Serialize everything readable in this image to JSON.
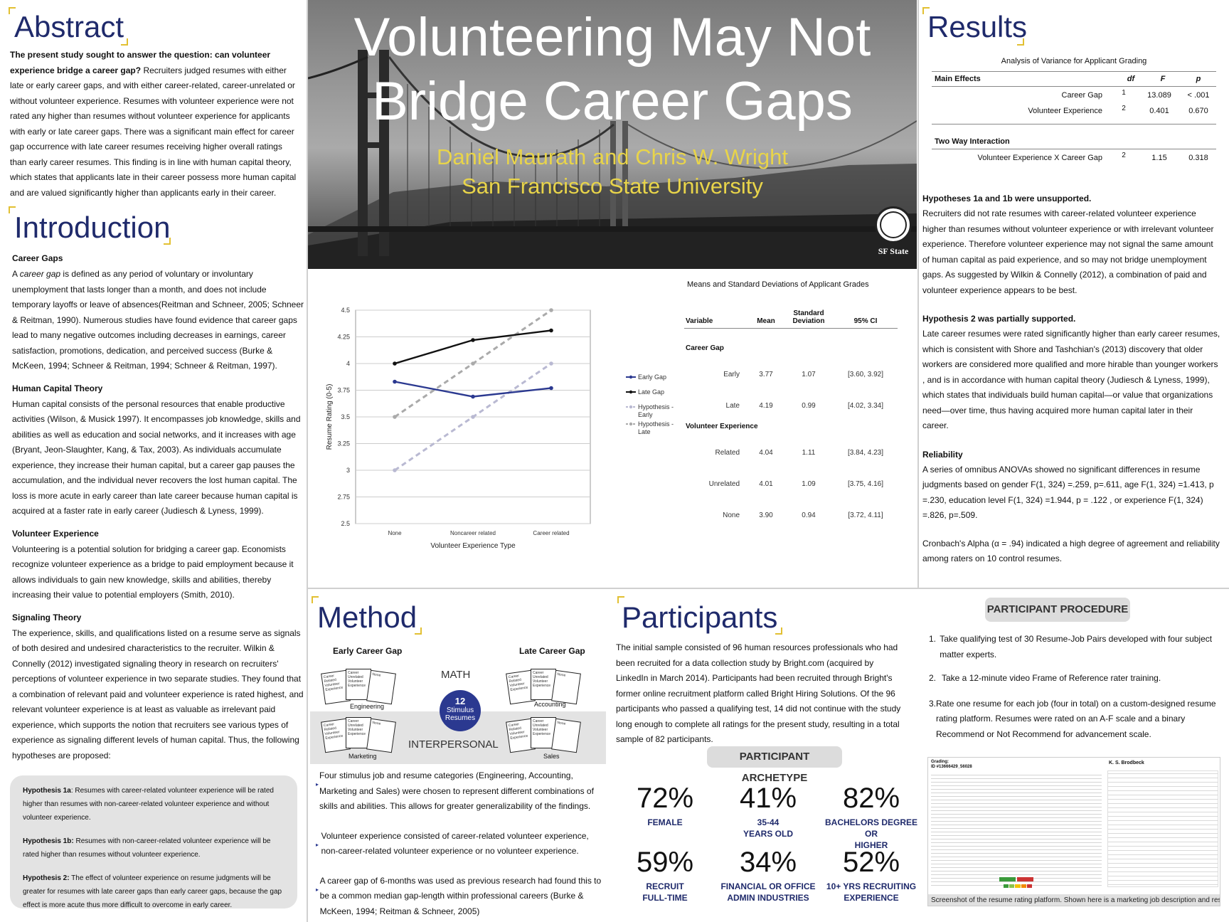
{
  "abstract": {
    "heading": "Abstract",
    "lead": "The present study sought to answer the question: can volunteer experience bridge a career gap?",
    "text": "Recruiters judged resumes with either late or early career gaps, and with either career-related, career-unrelated or without volunteer experience.  Resumes with volunteer experience were not rated any higher than resumes without volunteer experience for applicants with early or late career gaps. There was a significant main effect for career gap occurrence with late career resumes receiving higher overall ratings than early career resumes. This finding is in line with human capital theory, which states that applicants late in their career possess more human capital and are valued significantly higher than applicants early in their career."
  },
  "intro": {
    "heading": "Introduction",
    "s1_title": "Career Gaps",
    "s1_a": "A ",
    "s1_em": "career gap",
    "s1_b": " is defined as any period of voluntary or involuntary unemployment that lasts longer than a month, and does not include temporary layoffs or leave of absences(Reitman and Schneer, 2005; Schneer & Reitman, 1990).  Numerous studies have found evidence that career gaps lead to many negative outcomes including decreases in earnings, career satisfaction, promotions, dedication, and perceived success (Burke & McKeen, 1994; Schneer & Reitman, 1994; Schneer & Reitman, 1997).",
    "s2_title": "Human Capital Theory",
    "s2": "Human capital consists of the personal resources that enable productive activities (Wilson, & Musick 1997). It encompasses job knowledge, skills and abilities as well as education and social networks, and it increases with age (Bryant, Jeon-Slaughter, Kang, & Tax, 2003).  As individuals accumulate experience, they increase their human capital, but a career gap pauses the accumulation, and the individual never recovers the lost human capital.  The loss is more acute in early career than late career because human capital is acquired at a faster rate in early career (Judiesch & Lyness, 1999).",
    "s3_title": "Volunteer Experience",
    "s3": "Volunteering is a potential solution for bridging a career gap.  Economists recognize volunteer experience as a bridge to paid employment because it allows individuals to gain new knowledge, skills and abilities, thereby increasing their value to potential employers (Smith, 2010).",
    "s4_title": "Signaling Theory",
    "s4": "The experience, skills, and qualifications listed on a resume serve as signals of both desired and undesired characteristics to the recruiter.  Wilkin & Connelly (2012) investigated signaling theory in research on recruiters' perceptions of volunteer experience in two separate studies.  They found that a combination of relevant paid and volunteer experience is rated highest, and relevant volunteer experience is at least as valuable as irrelevant paid experience, which supports the notion that recruiters see various types of experience as signaling different levels of human capital.  Thus, the following hypotheses are proposed:",
    "h1a_label": "Hypothesis 1a",
    "h1a": ": Resumes with career-related volunteer experience will be rated higher than resumes with non-career-related volunteer experience and without volunteer experience.",
    "h1b_label": "Hypothesis 1b:",
    "h1b": " Resumes with non-career-related volunteer experience will be rated higher than resumes without volunteer experience.",
    "h2_label": "Hypothesis 2:",
    "h2": " The effect of volunteer experience on resume judgments will be greater for resumes with late career gaps than early career gaps, because the gap effect is more acute thus more difficult to overcome in early career."
  },
  "banner": {
    "title_line1": "Volunteering May Not",
    "title_line2": "Bridge Career Gaps",
    "authors": "Daniel Maurath and Chris W. Wright",
    "university": "San Francisco State University",
    "logo_text": "SF State"
  },
  "chart_data": {
    "type": "line",
    "categories": [
      "None",
      "Noncareer related",
      "Career related"
    ],
    "xlabel": "Volunteer Experience Type",
    "ylabel": "Resume Rating (0-5)",
    "ylim": [
      2.5,
      4.5
    ],
    "yticks": [
      "2.5",
      "2.75",
      "3",
      "3.25",
      "3.5",
      "3.75",
      "4",
      "4.25",
      "4.5"
    ],
    "series": [
      {
        "name": "Early Gap",
        "values": [
          3.83,
          3.69,
          3.77
        ],
        "color": "#2b3990",
        "dash": false
      },
      {
        "name": "Late Gap",
        "values": [
          4.0,
          4.22,
          4.31
        ],
        "color": "#111111",
        "dash": false
      },
      {
        "name": "Hypothesis - Early",
        "values": [
          3.0,
          3.5,
          4.0
        ],
        "color": "#b9b9d2",
        "dash": true
      },
      {
        "name": "Hypothesis - Late",
        "values": [
          3.5,
          4.0,
          4.5
        ],
        "color": "#aaaaaa",
        "dash": true
      }
    ]
  },
  "means_table": {
    "title": "Means and Standard Deviations of Applicant Grades",
    "headers": [
      "Variable",
      "Mean",
      "Standard Deviation",
      "95% CI"
    ],
    "group1": "Career Gap",
    "rows1": [
      [
        "Early",
        "3.77",
        "1.07",
        "[3.60, 3.92]"
      ],
      [
        "Late",
        "4.19",
        "0.99",
        "[4.02, 3.34]"
      ]
    ],
    "group2": "Volunteer Experience",
    "rows2": [
      [
        "Related",
        "4.04",
        "1.11",
        "[3.84, 4.23]"
      ],
      [
        "Unrelated",
        "4.01",
        "1.09",
        "[3.75, 4.16]"
      ],
      [
        "None",
        "3.90",
        "0.94",
        "[3.72, 4.11]"
      ]
    ]
  },
  "results": {
    "heading": "Results",
    "anova_title": "Analysis of Variance for Applicant Grading",
    "main_effects": "Main Effects",
    "col_df": "df",
    "col_f": "F",
    "col_p": "p",
    "me_rows": [
      [
        "Career Gap",
        "1",
        "13.089",
        "< .001"
      ],
      [
        "Volunteer Experience",
        "2",
        "0.401",
        "0.670"
      ]
    ],
    "interaction_title": "Two Way Interaction",
    "int_row": [
      "Volunteer Experience X Career Gap",
      "2",
      "1.15",
      "0.318"
    ],
    "h1_title": "Hypotheses 1a and 1b were unsupported.",
    "h1_text": "Recruiters did not rate resumes with career-related volunteer experience higher than resumes without volunteer experience or with irrelevant volunteer experience. Therefore volunteer experience may not signal the same amount of human capital as paid experience, and so may not bridge unemployment gaps. As suggested by Wilkin & Connelly (2012), a combination of paid and volunteer experience appears to be best.",
    "h2_title": "Hypothesis 2 was partially supported.",
    "h2_text": "Late career resumes were rated significantly higher than early career resumes, which is consistent with Shore and Tashchian's (2013) discovery that older workers are considered more qualified and more hirable than younger workers , and is in accordance with human capital theory (Judiesch & Lyness, 1999), which states that individuals build human capital—or value that organizations need—over time, thus having acquired more human capital later in their career.",
    "rel_title": "Reliability",
    "rel_text": "A series of omnibus ANOVAs showed no significant differences in resume judgments based on gender F(1, 324) =.259,  p=.611, age F(1, 324) =1.413, p =.230,  education level F(1, 324) =1.944, p = .122 , or experience F(1, 324) =.826, p=.509.",
    "alpha_text": "Cronbach's Alpha (α = .94) indicated a high degree of agreement and reliability among raters on 10 control resumes."
  },
  "method": {
    "heading": "Method",
    "early_label": "Early Career Gap",
    "late_label": "Late Career Gap",
    "math": "MATH",
    "interpersonal": "INTERPERSONAL",
    "circle_num": "12",
    "circle_text1": "Stimulus",
    "circle_text2": "Resumes",
    "eng": "Engineering",
    "acc": "Accounting",
    "mkt": "Marketing",
    "sal": "Sales",
    "card1": "Career Related Volunteer Experience",
    "card2": "Career Unrelated Volunteer Experience",
    "card3": "None",
    "b1": "Four stimulus job and resume categories (Engineering, Accounting, Marketing and Sales) were chosen to represent different combinations of skills and abilities. This allows for greater generalizability of the findings.",
    "b2": "Volunteer experience consisted of career-related volunteer experience, non-career-related volunteer experience or no volunteer experience.",
    "b3": "A career gap of 6-months was used as previous research had found this to be a common median gap-length within professional careers (Burke & McKeen, 1994; Reitman & Schneer, 2005)"
  },
  "participants": {
    "heading": "Participants",
    "text": "The initial sample consisted of 96 human resources professionals who had been recruited for a data collection study by Bright.com (acquired by LinkedIn in March 2014). Participants had been recruited through Bright's former online recruitment platform called Bright Hiring Solutions. Of the 96 participants who passed a qualifying test, 14 did not continue with the study long enough to complete all ratings for the present study, resulting in a total sample of 82 participants.",
    "archetype": "PARTICIPANT ARCHETYPE",
    "stats": [
      {
        "pct": "72%",
        "l1": "FEMALE",
        "l2": ""
      },
      {
        "pct": "41%",
        "l1": "35-44",
        "l2": "YEARS OLD"
      },
      {
        "pct": "82%",
        "l1": "BACHELORS DEGREE OR",
        "l2": "HIGHER"
      },
      {
        "pct": "59%",
        "l1": "RECRUIT",
        "l2": "FULL-TIME"
      },
      {
        "pct": "34%",
        "l1": "FINANCIAL OR OFFICE",
        "l2": "ADMIN INDUSTRIES"
      },
      {
        "pct": "52%",
        "l1": "10+ YRS RECRUITING",
        "l2": "EXPERIENCE"
      }
    ]
  },
  "procedure": {
    "heading": "PARTICIPANT PROCEDURE",
    "steps": [
      "Take qualifying test of 30 Resume-Job Pairs developed with four subject matter experts.",
      "Take a 12-minute video Frame of Reference rater training.",
      "Rate one resume for each job (four in total) on a custom-designed resume rating platform. Resumes were rated on an A-F scale and a binary Recommend or Not Recommend for advancement scale."
    ],
    "shot_grading": "Grading:",
    "shot_id": "ID #13666429_56028",
    "shot_name": "K. S. Brodbeck",
    "caption": "Screenshot of the resume rating platform. Shown here is a marketing job description and resume"
  }
}
